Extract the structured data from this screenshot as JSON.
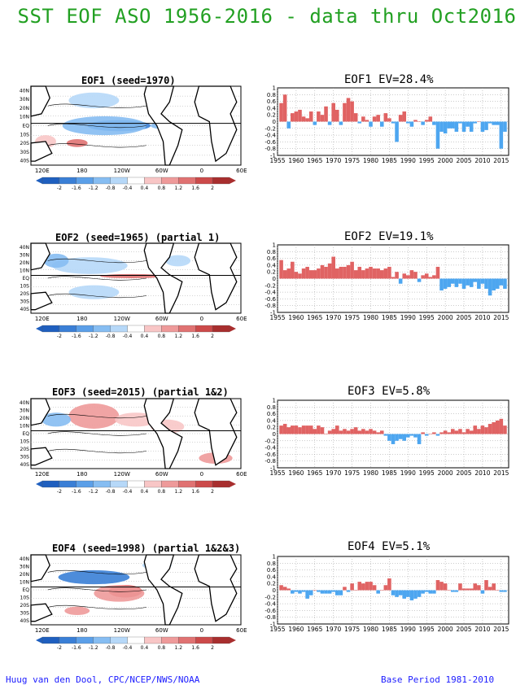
{
  "header": {
    "title": "SST EOF ASO 1956-2016 - data thru Oct2016"
  },
  "footer": {
    "credit": "Huug van den Dool, CPC/NCEP/NWS/NOAA",
    "base_period": "Base Period 1981-2010"
  },
  "colors": {
    "title_green": "#22a022",
    "footer_blue": "#1c1cff",
    "positive_bar": "#e06363",
    "negative_bar": "#4da6f0"
  },
  "map_axes": {
    "lat_labels": [
      "40N",
      "30N",
      "20N",
      "10N",
      "EQ",
      "10S",
      "20S",
      "30S",
      "40S"
    ],
    "lon_labels": [
      "120E",
      "180",
      "120W",
      "60W",
      "0",
      "60E"
    ]
  },
  "colorbar": {
    "labels": [
      "-2",
      "-1.6",
      "-1.2",
      "-0.8",
      "-0.4",
      "0.4",
      "0.8",
      "1.2",
      "1.6",
      "2"
    ],
    "colors": [
      "#1f5fbf",
      "#3a7fd6",
      "#5b9fe8",
      "#86bdf2",
      "#b6d8f8",
      "#ffffff",
      "#f8c6c6",
      "#ee9a9a",
      "#e07272",
      "#cc4a4a",
      "#a82e2e"
    ]
  },
  "panels": [
    {
      "map_title": "EOF1  (seed=1970)",
      "ts_title": "EOF1  EV=28.4%"
    },
    {
      "map_title": "EOF2  (seed=1965) (partial 1)",
      "ts_title": "EOF2  EV=19.1%"
    },
    {
      "map_title": "EOF3  (seed=2015) (partial 1&2)",
      "ts_title": "EOF3  EV=5.8%"
    },
    {
      "map_title": "EOF4  (seed=1998) (partial 1&2&3)",
      "ts_title": "EOF4  EV=5.1%"
    }
  ],
  "chart_data": [
    {
      "type": "bar",
      "title": "EOF1  EV=28.4%",
      "ylim": [
        -1,
        1
      ],
      "yticks": [
        "1",
        "0.8",
        "0.6",
        "0.4",
        "0.2",
        "0",
        "-0.2",
        "-0.4",
        "-0.6",
        "-0.8",
        "-1"
      ],
      "xtick_labels": [
        "1955",
        "1960",
        "1965",
        "1970",
        "1975",
        "1980",
        "1985",
        "1990",
        "1995",
        "2000",
        "2005",
        "2010",
        "2015"
      ],
      "x": [
        1956,
        1957,
        1958,
        1959,
        1960,
        1961,
        1962,
        1963,
        1964,
        1965,
        1966,
        1967,
        1968,
        1969,
        1970,
        1971,
        1972,
        1973,
        1974,
        1975,
        1976,
        1977,
        1978,
        1979,
        1980,
        1981,
        1982,
        1983,
        1984,
        1985,
        1986,
        1987,
        1988,
        1989,
        1990,
        1991,
        1992,
        1993,
        1994,
        1995,
        1996,
        1997,
        1998,
        1999,
        2000,
        2001,
        2002,
        2003,
        2004,
        2005,
        2006,
        2007,
        2008,
        2009,
        2010,
        2011,
        2012,
        2013,
        2014,
        2015,
        2016
      ],
      "values": [
        0.55,
        0.8,
        -0.2,
        0.25,
        0.3,
        0.35,
        0.15,
        0.1,
        0.3,
        -0.1,
        0.3,
        0.2,
        0.45,
        -0.1,
        0.55,
        0.35,
        -0.1,
        0.55,
        0.7,
        0.6,
        0.25,
        -0.05,
        0.15,
        0.05,
        -0.15,
        0.15,
        0.2,
        -0.15,
        0.25,
        0.1,
        -0.05,
        -0.6,
        0.2,
        0.3,
        -0.05,
        -0.15,
        0.05,
        0.0,
        -0.1,
        0.05,
        0.15,
        -0.1,
        -0.8,
        -0.3,
        -0.35,
        -0.2,
        -0.2,
        -0.3,
        -0.05,
        -0.3,
        -0.15,
        -0.3,
        -0.05,
        0.0,
        -0.3,
        -0.25,
        -0.05,
        -0.1,
        -0.1,
        -0.8,
        -0.3
      ]
    },
    {
      "type": "bar",
      "title": "EOF2  EV=19.1%",
      "ylim": [
        -1,
        1
      ],
      "yticks": [
        "1",
        "0.8",
        "0.6",
        "0.4",
        "0.2",
        "0",
        "-0.2",
        "-0.4",
        "-0.6",
        "-0.8",
        "-1"
      ],
      "xtick_labels": [
        "1955",
        "1960",
        "1965",
        "1970",
        "1975",
        "1980",
        "1985",
        "1990",
        "1995",
        "2000",
        "2005",
        "2010",
        "2015"
      ],
      "x": [
        1956,
        1957,
        1958,
        1959,
        1960,
        1961,
        1962,
        1963,
        1964,
        1965,
        1966,
        1967,
        1968,
        1969,
        1970,
        1971,
        1972,
        1973,
        1974,
        1975,
        1976,
        1977,
        1978,
        1979,
        1980,
        1981,
        1982,
        1983,
        1984,
        1985,
        1986,
        1987,
        1988,
        1989,
        1990,
        1991,
        1992,
        1993,
        1994,
        1995,
        1996,
        1997,
        1998,
        1999,
        2000,
        2001,
        2002,
        2003,
        2004,
        2005,
        2006,
        2007,
        2008,
        2009,
        2010,
        2011,
        2012,
        2013,
        2014,
        2015,
        2016
      ],
      "values": [
        0.55,
        0.25,
        0.3,
        0.5,
        0.2,
        0.15,
        0.3,
        0.35,
        0.25,
        0.25,
        0.3,
        0.4,
        0.35,
        0.45,
        0.65,
        0.3,
        0.35,
        0.35,
        0.4,
        0.5,
        0.25,
        0.35,
        0.25,
        0.3,
        0.35,
        0.3,
        0.3,
        0.25,
        0.3,
        0.35,
        0.05,
        0.2,
        -0.15,
        0.15,
        0.1,
        0.25,
        0.2,
        -0.1,
        0.1,
        0.15,
        0.05,
        0.1,
        0.35,
        -0.35,
        -0.3,
        -0.25,
        -0.15,
        -0.25,
        -0.15,
        -0.3,
        -0.2,
        -0.25,
        -0.1,
        -0.3,
        -0.15,
        -0.3,
        -0.5,
        -0.35,
        -0.3,
        -0.2,
        -0.3
      ]
    },
    {
      "type": "bar",
      "title": "EOF3  EV=5.8%",
      "ylim": [
        -1,
        1
      ],
      "yticks": [
        "1",
        "0.8",
        "0.6",
        "0.4",
        "0.2",
        "0",
        "-0.2",
        "-0.4",
        "-0.6",
        "-0.8",
        "-1"
      ],
      "xtick_labels": [
        "1955",
        "1960",
        "1965",
        "1970",
        "1975",
        "1980",
        "1985",
        "1990",
        "1995",
        "2000",
        "2005",
        "2010",
        "2015"
      ],
      "x": [
        1956,
        1957,
        1958,
        1959,
        1960,
        1961,
        1962,
        1963,
        1964,
        1965,
        1966,
        1967,
        1968,
        1969,
        1970,
        1971,
        1972,
        1973,
        1974,
        1975,
        1976,
        1977,
        1978,
        1979,
        1980,
        1981,
        1982,
        1983,
        1984,
        1985,
        1986,
        1987,
        1988,
        1989,
        1990,
        1991,
        1992,
        1993,
        1994,
        1995,
        1996,
        1997,
        1998,
        1999,
        2000,
        2001,
        2002,
        2003,
        2004,
        2005,
        2006,
        2007,
        2008,
        2009,
        2010,
        2011,
        2012,
        2013,
        2014,
        2015,
        2016
      ],
      "values": [
        0.25,
        0.3,
        0.2,
        0.25,
        0.25,
        0.2,
        0.25,
        0.25,
        0.25,
        0.15,
        0.25,
        0.2,
        0.0,
        0.1,
        0.15,
        0.25,
        0.1,
        0.15,
        0.1,
        0.15,
        0.2,
        0.1,
        0.15,
        0.1,
        0.15,
        0.1,
        0.05,
        0.1,
        -0.05,
        -0.2,
        -0.3,
        -0.2,
        -0.15,
        -0.2,
        -0.1,
        -0.05,
        -0.1,
        -0.3,
        0.05,
        -0.05,
        0.0,
        0.05,
        -0.05,
        0.05,
        0.1,
        0.05,
        0.15,
        0.1,
        0.15,
        0.05,
        0.15,
        0.1,
        0.25,
        0.15,
        0.25,
        0.2,
        0.3,
        0.35,
        0.4,
        0.45,
        0.25
      ]
    },
    {
      "type": "bar",
      "title": "EOF4  EV=5.1%",
      "ylim": [
        -1,
        1
      ],
      "yticks": [
        "1",
        "0.8",
        "0.6",
        "0.4",
        "0.2",
        "0",
        "-0.2",
        "-0.4",
        "-0.6",
        "-0.8",
        "-1"
      ],
      "xtick_labels": [
        "1955",
        "1960",
        "1965",
        "1970",
        "1975",
        "1980",
        "1985",
        "1990",
        "1995",
        "2000",
        "2005",
        "2010",
        "2015"
      ],
      "x": [
        1956,
        1957,
        1958,
        1959,
        1960,
        1961,
        1962,
        1963,
        1964,
        1965,
        1966,
        1967,
        1968,
        1969,
        1970,
        1971,
        1972,
        1973,
        1974,
        1975,
        1976,
        1977,
        1978,
        1979,
        1980,
        1981,
        1982,
        1983,
        1984,
        1985,
        1986,
        1987,
        1988,
        1989,
        1990,
        1991,
        1992,
        1993,
        1994,
        1995,
        1996,
        1997,
        1998,
        1999,
        2000,
        2001,
        2002,
        2003,
        2004,
        2005,
        2006,
        2007,
        2008,
        2009,
        2010,
        2011,
        2012,
        2013,
        2014,
        2015,
        2016
      ],
      "values": [
        0.15,
        0.1,
        0.05,
        -0.1,
        -0.05,
        -0.1,
        -0.05,
        -0.25,
        -0.15,
        0.0,
        -0.05,
        -0.1,
        -0.1,
        -0.1,
        -0.05,
        -0.15,
        -0.15,
        0.1,
        -0.05,
        0.2,
        0.0,
        0.25,
        0.2,
        0.25,
        0.25,
        0.15,
        -0.1,
        0.0,
        0.15,
        0.35,
        -0.15,
        -0.2,
        -0.15,
        -0.25,
        -0.2,
        -0.3,
        -0.25,
        -0.2,
        -0.1,
        -0.05,
        -0.1,
        -0.1,
        0.3,
        0.25,
        0.2,
        0.0,
        -0.05,
        -0.05,
        0.2,
        0.05,
        0.05,
        0.05,
        0.2,
        0.15,
        -0.1,
        0.3,
        0.1,
        0.2,
        0.0,
        -0.05,
        -0.05
      ]
    }
  ]
}
